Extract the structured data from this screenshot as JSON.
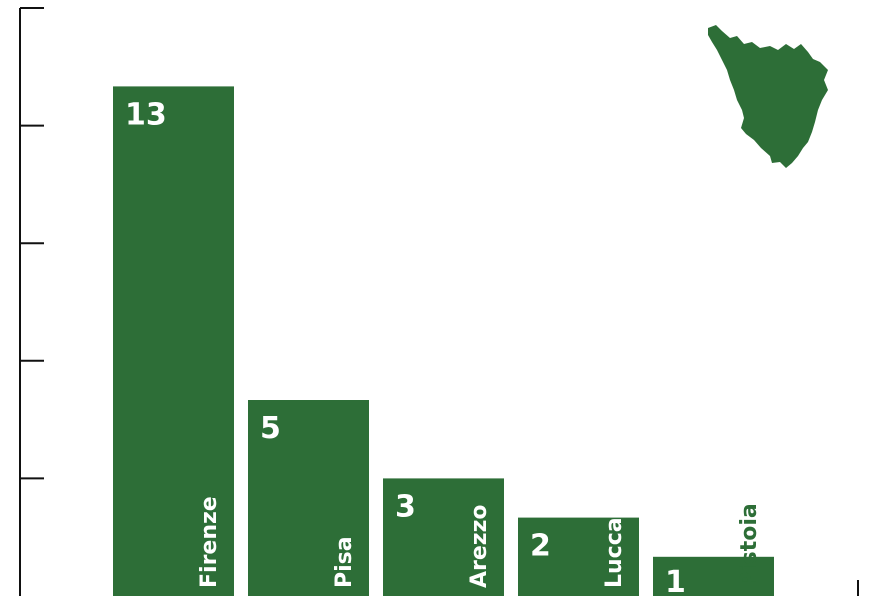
{
  "chart_data": {
    "type": "bar",
    "categories": [
      "Firenze",
      "Pisa",
      "Arezzo",
      "Lucca",
      "Pistoia"
    ],
    "values": [
      13,
      5,
      3,
      2,
      1
    ],
    "title": "",
    "xlabel": "",
    "ylabel": "",
    "ylim": [
      0,
      15
    ],
    "ytick_values": [
      0,
      3,
      6,
      9,
      12,
      15
    ],
    "tick_labels_shown": false,
    "grid": false,
    "legend": "none",
    "decoration": "tuscany-region-silhouette",
    "bar_color": "#2d6e37",
    "value_label_color": "#ffffff",
    "category_label_colors": [
      "#ffffff",
      "#ffffff",
      "#ffffff",
      "#ffffff",
      "#2d6e37"
    ]
  }
}
